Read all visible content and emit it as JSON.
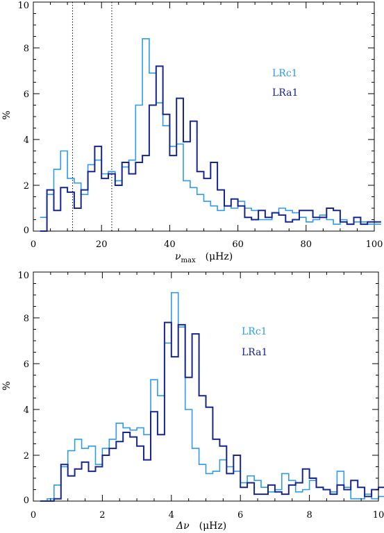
{
  "colors": {
    "LRc1": "#2f9be8",
    "LRa1": "#16258f"
  },
  "chart_data": [
    {
      "type": "line",
      "xlabel_main": "ν",
      "xlabel_sub": "max",
      "xlabel_unit": "(μHz)",
      "ylabel": "%",
      "xlim": [
        0,
        100
      ],
      "ylim": [
        0,
        10
      ],
      "xticks": [
        "0",
        "20",
        "40",
        "60",
        "80",
        "100"
      ],
      "xtick_values": [
        0,
        20,
        40,
        60,
        80,
        100
      ],
      "yticks": [
        "0",
        "2",
        "4",
        "6",
        "8",
        "10"
      ],
      "ytick_values": [
        0,
        2,
        4,
        6,
        8,
        10
      ],
      "vlines": [
        11.5,
        23
      ],
      "legend": [
        "LRc1",
        "LRa1"
      ],
      "bin_width": 2,
      "bin_start": 2,
      "series": [
        {
          "name": "LRc1",
          "values": [
            0.6,
            1.6,
            2.7,
            3.5,
            2.3,
            2.1,
            1.6,
            2.9,
            3.1,
            2.5,
            2.6,
            2.2,
            2.8,
            3.1,
            5.5,
            8.4,
            6.9,
            5.6,
            4.6,
            3.7,
            3.8,
            2.2,
            1.9,
            1.6,
            1.3,
            1.1,
            0.9,
            1.1,
            1.0,
            1.3,
            1.0,
            0.9,
            0.5,
            0.5,
            0.8,
            1.0,
            0.9,
            0.8,
            0.6,
            0.4,
            0.5,
            0.7,
            0.5,
            0.3,
            0.5,
            0.3,
            0.4,
            0.4,
            0.3,
            0.3
          ]
        },
        {
          "name": "LRa1",
          "values": [
            0.0,
            1.8,
            0.9,
            1.9,
            1.7,
            1.0,
            1.8,
            2.6,
            3.7,
            2.3,
            2.5,
            2.0,
            3.0,
            2.5,
            3.0,
            3.3,
            5.5,
            7.2,
            5.1,
            3.3,
            5.8,
            3.9,
            4.8,
            2.6,
            2.3,
            3.0,
            1.8,
            1.1,
            1.4,
            1.1,
            0.6,
            0.5,
            0.9,
            0.6,
            0.8,
            0.7,
            0.4,
            0.5,
            0.9,
            0.9,
            0.6,
            0.6,
            1.0,
            0.9,
            0.4,
            0.3,
            0.6,
            0.3,
            0.4,
            0.4
          ]
        }
      ]
    },
    {
      "type": "line",
      "xlabel_main": "Δν",
      "xlabel_sub": "",
      "xlabel_unit": "(μHz)",
      "ylabel": "%",
      "xlim": [
        0,
        10
      ],
      "ylim": [
        0,
        10
      ],
      "xticks": [
        "0",
        "2",
        "4",
        "6",
        "8",
        "10"
      ],
      "xtick_values": [
        0,
        2,
        4,
        6,
        8,
        10
      ],
      "yticks": [
        "0",
        "2",
        "4",
        "6",
        "8",
        "10"
      ],
      "ytick_values": [
        0,
        2,
        4,
        6,
        8,
        10
      ],
      "vlines": [],
      "legend": [
        "LRc1",
        "LRa1"
      ],
      "bin_width": 0.2,
      "bin_start": 0.2,
      "series": [
        {
          "name": "LRc1",
          "values": [
            0.0,
            0.1,
            0.7,
            1.5,
            2.2,
            2.7,
            2.3,
            2.4,
            1.6,
            2.3,
            2.7,
            3.4,
            3.2,
            3.1,
            3.2,
            2.9,
            5.3,
            4.6,
            6.9,
            9.1,
            7.6,
            4.0,
            2.3,
            1.6,
            1.2,
            1.3,
            1.8,
            1.5,
            1.3,
            0.8,
            1.1,
            0.9,
            0.6,
            0.4,
            0.5,
            1.2,
            0.9,
            0.4,
            0.5,
            0.9,
            0.6,
            0.5,
            0.4,
            1.3,
            0.6,
            0.1,
            0.1,
            0.3,
            0.1,
            0.2
          ]
        },
        {
          "name": "LRa1",
          "values": [
            0.0,
            0.0,
            0.1,
            1.6,
            1.1,
            1.4,
            1.7,
            1.3,
            1.5,
            2.0,
            2.3,
            2.6,
            3.0,
            2.8,
            2.4,
            1.8,
            3.9,
            2.9,
            7.8,
            6.3,
            7.7,
            5.4,
            7.3,
            4.6,
            4.1,
            2.7,
            2.4,
            1.2,
            2.0,
            0.6,
            0.8,
            0.3,
            0.3,
            0.7,
            0.4,
            0.3,
            0.7,
            0.8,
            1.4,
            1.0,
            0.6,
            0.5,
            0.3,
            0.7,
            0.5,
            0.9,
            0.6,
            0.2,
            0.5,
            0.6
          ]
        }
      ]
    }
  ]
}
